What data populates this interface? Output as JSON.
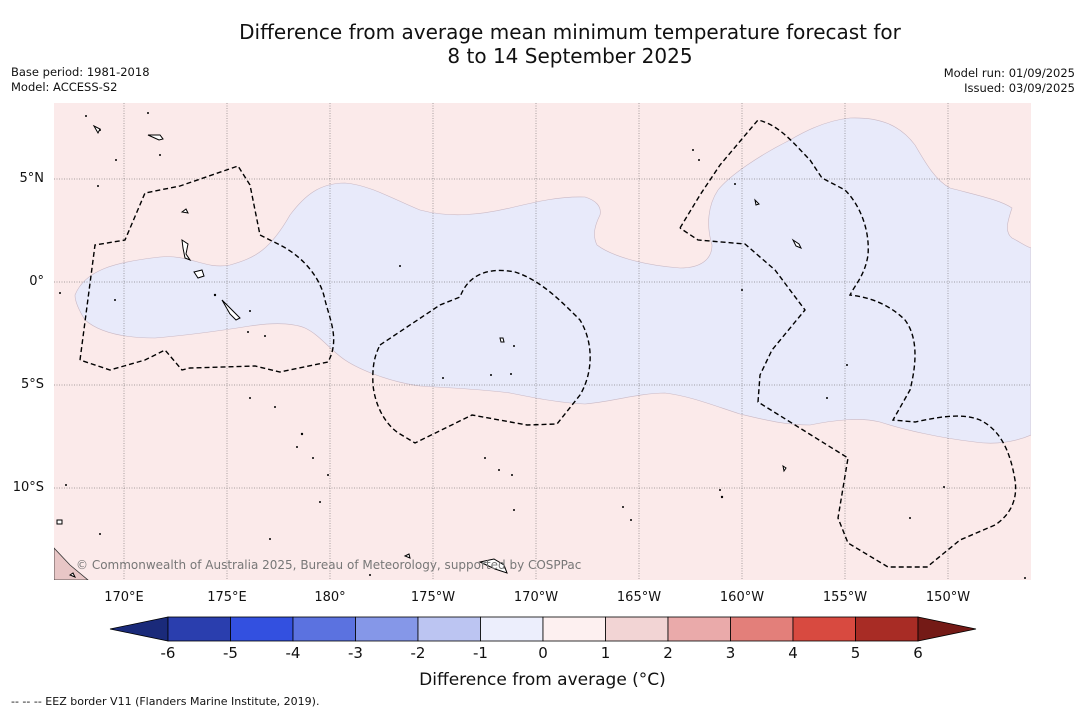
{
  "title": {
    "line1": "Difference from average mean minimum temperature forecast for",
    "line2": "8 to 14 September 2025"
  },
  "meta_left": {
    "base_period": "Base period: 1981-2018",
    "model": "Model: ACCESS-S2"
  },
  "meta_right": {
    "model_run": "Model run: 01/09/2025",
    "issued": "Issued: 03/09/2025"
  },
  "map": {
    "lat_labels": [
      "5°N",
      "0°",
      "5°S",
      "10°S"
    ],
    "lon_labels": [
      "170°E",
      "175°E",
      "180°",
      "175°W",
      "170°W",
      "165°W",
      "160°W",
      "155°W",
      "150°W"
    ],
    "copyright": "© Commonwealth of Australia 2025, Bureau of Meteorology, supported by COSPPac",
    "colors": {
      "warm_background": "#fbeaea",
      "cool_anomaly": "#e8eafa",
      "eez_border": "#000000"
    }
  },
  "colorbar": {
    "ticks": [
      "-6",
      "-5",
      "-4",
      "-3",
      "-2",
      "-1",
      "0",
      "1",
      "2",
      "3",
      "4",
      "5",
      "6"
    ],
    "colors": [
      "#1a2a7a",
      "#2a3eae",
      "#3350e0",
      "#5b72e0",
      "#8597e8",
      "#bcc5f2",
      "#eceefc",
      "#fdf0f0",
      "#f2d4d4",
      "#eaaaaa",
      "#e37f7a",
      "#d84a40",
      "#a82c25",
      "#741a16"
    ],
    "label": "Difference from average (°C)"
  },
  "footnote": "-- -- -- EEZ border V11 (Flanders Marine Institute, 2019)."
}
